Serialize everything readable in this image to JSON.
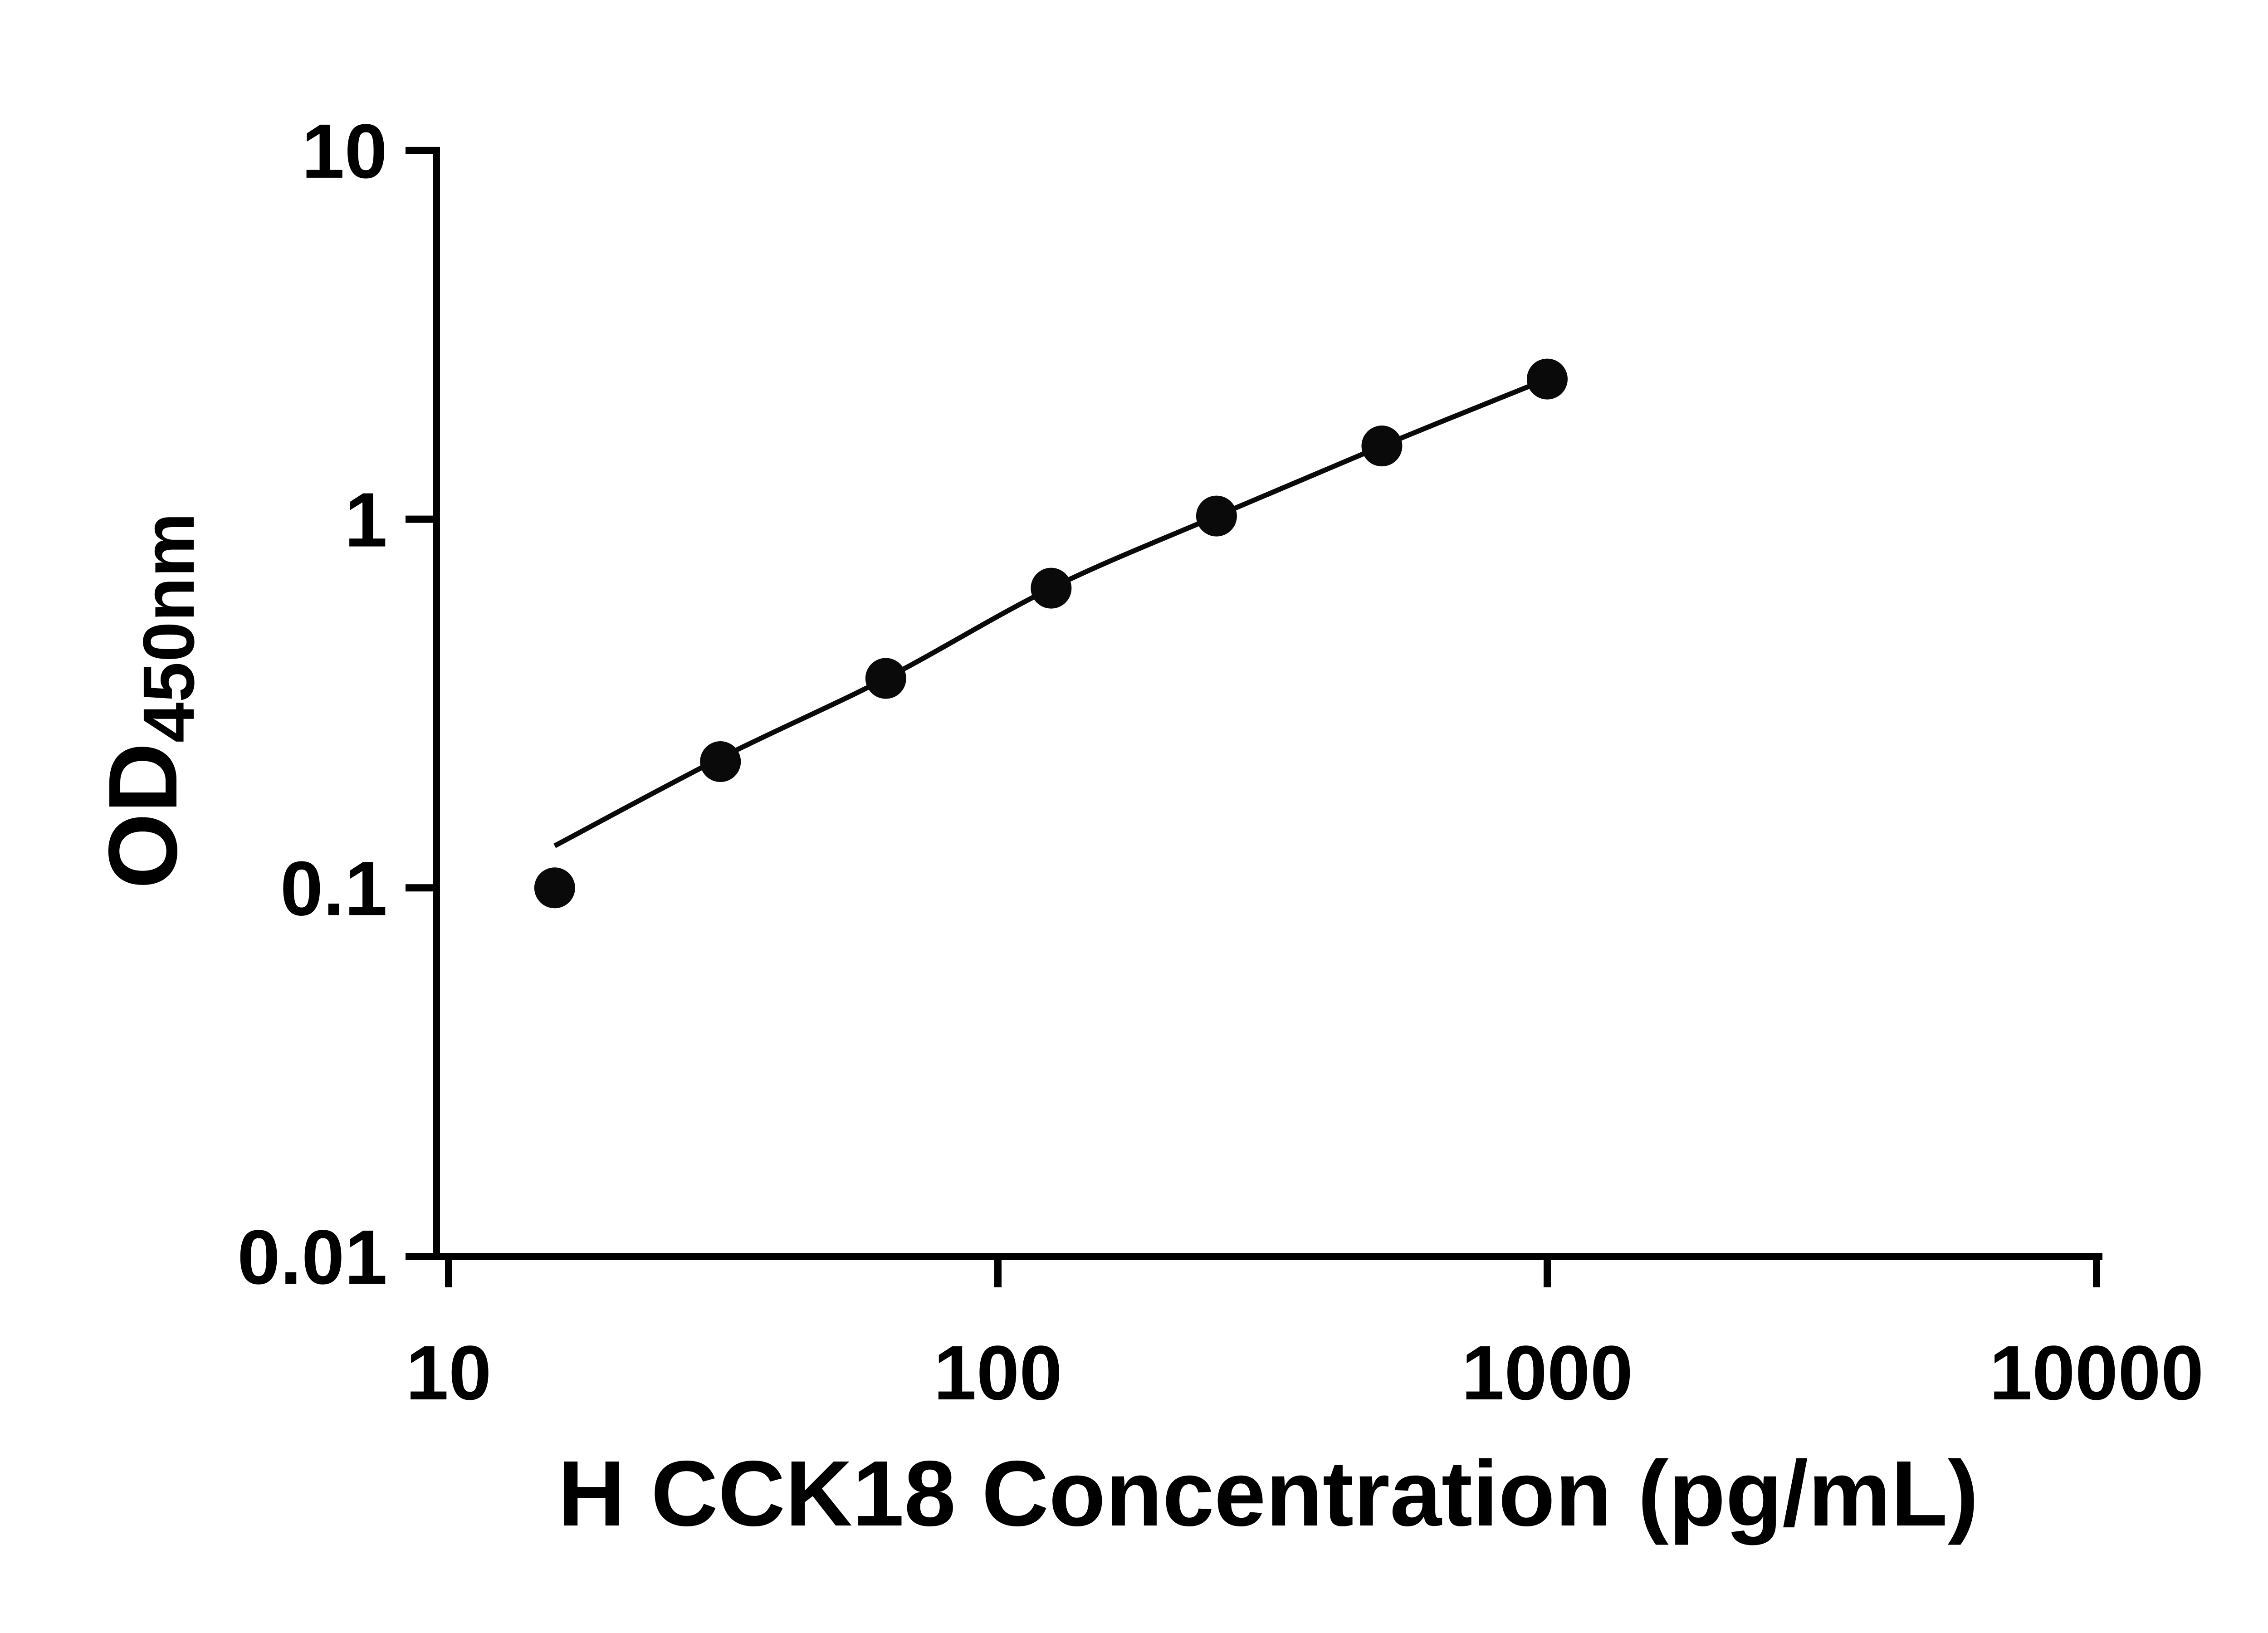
{
  "chart_data": {
    "type": "scatter",
    "title": "",
    "xlabel": "H CCK18 Concentration (pg/mL)",
    "ylabel_main": "OD",
    "ylabel_sub": "450nm",
    "x_scale": "log",
    "y_scale": "log",
    "xlim": [
      10,
      10000
    ],
    "ylim": [
      0.01,
      10
    ],
    "x_ticks": [
      10,
      100,
      1000,
      10000
    ],
    "x_tick_labels": [
      "10",
      "100",
      "1000",
      "10000"
    ],
    "y_ticks": [
      0.01,
      0.1,
      1,
      10
    ],
    "y_tick_labels": [
      "0.01",
      "0.1",
      "1",
      "10"
    ],
    "grid": false,
    "legend": "none",
    "points": {
      "x": [
        15.6,
        31.25,
        62.5,
        125,
        250,
        500,
        1000
      ],
      "y": [
        0.1,
        0.22,
        0.37,
        0.65,
        1.02,
        1.58,
        2.4
      ]
    },
    "fit_line": {
      "x": [
        15.6,
        31.25,
        62.5,
        125,
        250,
        500,
        1000
      ],
      "y": [
        0.13,
        0.225,
        0.37,
        0.65,
        1.02,
        1.58,
        2.4
      ]
    },
    "colors": {
      "points": "#0a0a0a",
      "line": "#0a0a0a",
      "axis": "#000000",
      "text": "#000000",
      "background": "#ffffff"
    }
  }
}
